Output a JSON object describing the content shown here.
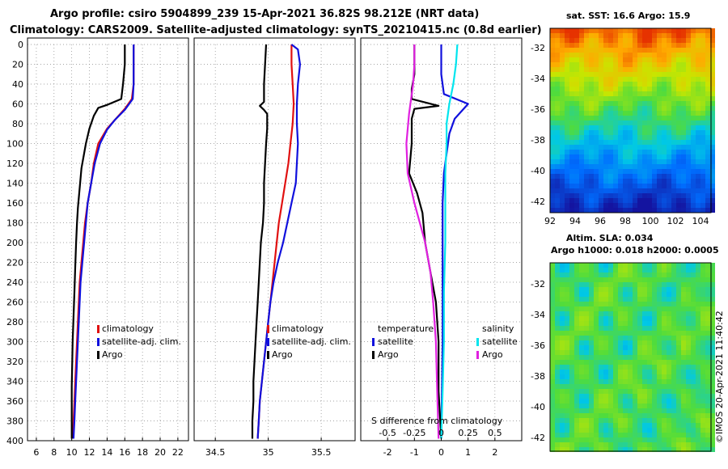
{
  "header": {
    "line1": "Argo profile: csiro 5904899_239 15-Apr-2021 36.82S 98.212E (NRT data)",
    "line2": "Climatology: CARS2009. Satellite-adjusted climatology: synTS_20210415.nc (0.8d earlier)"
  },
  "sst_map": {
    "title": "sat. SST: 16.6 Argo: 15.9",
    "yticks": [
      "-32",
      "-34",
      "-36",
      "-38",
      "-40",
      "-42"
    ],
    "xticks": [
      "92",
      "94",
      "96",
      "98",
      "100",
      "102",
      "104"
    ]
  },
  "sla_map": {
    "title1": "Altim. SLA: 0.034",
    "title2": "Argo h1000: 0.018 h2000: 0.0005",
    "yticks": [
      "-32",
      "-34",
      "-36",
      "-38",
      "-40",
      "-42"
    ]
  },
  "credit": "©IMOS 20-Apr-2021 11:40:42",
  "colors": {
    "climatology": "#e01010",
    "satellite": "#1010dd",
    "argo": "#000000",
    "salinity_sat": "#00e5ee",
    "salinity_argo": "#e020e0"
  },
  "chart_data": [
    {
      "type": "line",
      "name": "temperature",
      "ylabel": "depth",
      "ylim": [
        400,
        0
      ],
      "yticks": [
        0,
        20,
        40,
        60,
        80,
        100,
        120,
        140,
        160,
        180,
        200,
        220,
        240,
        260,
        280,
        300,
        320,
        340,
        360,
        380,
        400
      ],
      "xlim": [
        5,
        23.2
      ],
      "xticks": [
        6,
        8,
        10,
        12,
        14,
        16,
        18,
        20,
        22
      ],
      "legend": [
        "climatology",
        "satellite-adj. clim.",
        "Argo"
      ],
      "series": [
        {
          "name": "climatology",
          "color": "#e01010",
          "points": [
            [
              17,
              0
            ],
            [
              17,
              20
            ],
            [
              17,
              40
            ],
            [
              16.8,
              55
            ],
            [
              16,
              65
            ],
            [
              15,
              75
            ],
            [
              14,
              85
            ],
            [
              13,
              100
            ],
            [
              12.5,
              120
            ],
            [
              12.2,
              140
            ],
            [
              11.8,
              160
            ],
            [
              11.5,
              180
            ],
            [
              11.3,
              200
            ],
            [
              11.1,
              220
            ],
            [
              10.9,
              240
            ],
            [
              10.8,
              260
            ],
            [
              10.7,
              280
            ],
            [
              10.6,
              300
            ],
            [
              10.5,
              320
            ],
            [
              10.4,
              340
            ],
            [
              10.3,
              360
            ],
            [
              10.2,
              380
            ],
            [
              10.1,
              398
            ]
          ]
        },
        {
          "name": "satellite-adj. clim.",
          "color": "#1010dd",
          "points": [
            [
              17,
              0
            ],
            [
              17,
              20
            ],
            [
              17,
              40
            ],
            [
              16.9,
              55
            ],
            [
              16,
              66
            ],
            [
              14.9,
              76
            ],
            [
              14,
              86
            ],
            [
              13.2,
              100
            ],
            [
              12.6,
              120
            ],
            [
              12.2,
              140
            ],
            [
              11.8,
              160
            ],
            [
              11.6,
              180
            ],
            [
              11.4,
              200
            ],
            [
              11.2,
              220
            ],
            [
              11,
              240
            ],
            [
              10.9,
              260
            ],
            [
              10.8,
              280
            ],
            [
              10.7,
              300
            ],
            [
              10.6,
              320
            ],
            [
              10.5,
              340
            ],
            [
              10.4,
              360
            ],
            [
              10.3,
              380
            ],
            [
              10.2,
              398
            ]
          ]
        },
        {
          "name": "Argo",
          "color": "#000000",
          "points": [
            [
              16,
              0
            ],
            [
              16,
              20
            ],
            [
              15.8,
              40
            ],
            [
              15.6,
              55
            ],
            [
              14,
              61
            ],
            [
              13,
              64
            ],
            [
              12.5,
              72
            ],
            [
              12,
              85
            ],
            [
              11.6,
              100
            ],
            [
              11.1,
              125
            ],
            [
              10.9,
              145
            ],
            [
              10.7,
              165
            ],
            [
              10.6,
              180
            ],
            [
              10.5,
              200
            ],
            [
              10.4,
              225
            ],
            [
              10.3,
              250
            ],
            [
              10.2,
              275
            ],
            [
              10.1,
              300
            ],
            [
              10.05,
              325
            ],
            [
              10,
              345
            ],
            [
              10,
              370
            ],
            [
              10,
              398
            ]
          ]
        }
      ]
    },
    {
      "type": "line",
      "name": "salinity",
      "ylim": [
        400,
        0
      ],
      "xlim": [
        34.3,
        35.82
      ],
      "xticks": [
        34.5,
        35,
        35.5
      ],
      "legend": [
        "climatology",
        "satellite-adj. clim.",
        "Argo"
      ],
      "series": [
        {
          "name": "climatology",
          "color": "#e01010",
          "points": [
            [
              35.22,
              0
            ],
            [
              35.22,
              20
            ],
            [
              35.23,
              40
            ],
            [
              35.24,
              60
            ],
            [
              35.23,
              80
            ],
            [
              35.21,
              100
            ],
            [
              35.19,
              120
            ],
            [
              35.16,
              140
            ],
            [
              35.13,
              160
            ],
            [
              35.1,
              180
            ],
            [
              35.08,
              200
            ],
            [
              35.06,
              220
            ],
            [
              35.04,
              240
            ],
            [
              35.02,
              260
            ],
            [
              35.0,
              280
            ],
            [
              34.98,
              300
            ],
            [
              34.96,
              320
            ],
            [
              34.94,
              340
            ],
            [
              34.92,
              360
            ],
            [
              34.91,
              380
            ],
            [
              34.9,
              398
            ]
          ]
        },
        {
          "name": "satellite-adj. clim.",
          "color": "#1010dd",
          "points": [
            [
              35.22,
              0
            ],
            [
              35.28,
              5
            ],
            [
              35.3,
              20
            ],
            [
              35.28,
              40
            ],
            [
              35.27,
              60
            ],
            [
              35.27,
              80
            ],
            [
              35.28,
              100
            ],
            [
              35.27,
              120
            ],
            [
              35.26,
              140
            ],
            [
              35.22,
              160
            ],
            [
              35.18,
              180
            ],
            [
              35.14,
              200
            ],
            [
              35.09,
              220
            ],
            [
              35.05,
              240
            ],
            [
              35.02,
              260
            ],
            [
              35.0,
              280
            ],
            [
              34.98,
              300
            ],
            [
              34.96,
              320
            ],
            [
              34.94,
              340
            ],
            [
              34.92,
              360
            ],
            [
              34.91,
              380
            ],
            [
              34.9,
              398
            ]
          ]
        },
        {
          "name": "Argo",
          "color": "#000000",
          "points": [
            [
              34.98,
              0
            ],
            [
              34.97,
              20
            ],
            [
              34.96,
              40
            ],
            [
              34.96,
              58
            ],
            [
              34.92,
              62
            ],
            [
              34.96,
              66
            ],
            [
              34.99,
              70
            ],
            [
              34.99,
              85
            ],
            [
              34.98,
              100
            ],
            [
              34.97,
              120
            ],
            [
              34.96,
              140
            ],
            [
              34.96,
              160
            ],
            [
              34.95,
              180
            ],
            [
              34.93,
              200
            ],
            [
              34.92,
              220
            ],
            [
              34.91,
              240
            ],
            [
              34.9,
              260
            ],
            [
              34.89,
              280
            ],
            [
              34.88,
              300
            ],
            [
              34.87,
              320
            ],
            [
              34.86,
              340
            ],
            [
              34.86,
              360
            ],
            [
              34.85,
              380
            ],
            [
              34.85,
              398
            ]
          ]
        }
      ]
    },
    {
      "type": "line",
      "name": "difference",
      "ylim": [
        400,
        0
      ],
      "xlim": [
        -3,
        3
      ],
      "xticks_top": [
        -2,
        -1,
        0,
        1,
        2
      ],
      "xticks_bottom": [
        "-0.5",
        "-0.25",
        "0",
        "0.25",
        "0.5"
      ],
      "xlabel": "S difference from climatology",
      "legend_left_title": "temperature",
      "legend_right_title": "salinity",
      "legend": [
        "satellite",
        "Argo",
        "satellite",
        "Argo"
      ],
      "series": [
        {
          "name": "temperature satellite",
          "color": "#1010dd",
          "points": [
            [
              0,
              0
            ],
            [
              0,
              30
            ],
            [
              0.1,
              50
            ],
            [
              1,
              60
            ],
            [
              0.5,
              75
            ],
            [
              0.3,
              90
            ],
            [
              0.2,
              110
            ],
            [
              0.1,
              130
            ],
            [
              0.05,
              160
            ],
            [
              0.05,
              200
            ],
            [
              0.05,
              300
            ],
            [
              0,
              398
            ]
          ]
        },
        {
          "name": "temperature Argo",
          "color": "#000000",
          "points": [
            [
              -1,
              0
            ],
            [
              -1,
              30
            ],
            [
              -1.1,
              45
            ],
            [
              -1.1,
              55
            ],
            [
              -0.1,
              62
            ],
            [
              -1,
              65
            ],
            [
              -1.1,
              75
            ],
            [
              -1.1,
              100
            ],
            [
              -1.2,
              130
            ],
            [
              -0.9,
              150
            ],
            [
              -0.7,
              170
            ],
            [
              -0.6,
              200
            ],
            [
              -0.4,
              230
            ],
            [
              -0.2,
              260
            ],
            [
              -0.1,
              300
            ],
            [
              -0.1,
              350
            ],
            [
              0,
              398
            ]
          ]
        },
        {
          "name": "salinity satellite",
          "color": "#00e5ee",
          "points": [
            [
              0.6,
              0
            ],
            [
              0.55,
              20
            ],
            [
              0.45,
              40
            ],
            [
              0.3,
              60
            ],
            [
              0.2,
              80
            ],
            [
              0.2,
              100
            ],
            [
              0.15,
              130
            ],
            [
              0.15,
              160
            ],
            [
              0.15,
              200
            ],
            [
              0.1,
              250
            ],
            [
              0.1,
              300
            ],
            [
              0.05,
              350
            ],
            [
              0,
              398
            ]
          ]
        },
        {
          "name": "salinity Argo",
          "color": "#e020e0",
          "points": [
            [
              -1,
              0
            ],
            [
              -1,
              20
            ],
            [
              -1.05,
              40
            ],
            [
              -1.2,
              70
            ],
            [
              -1.3,
              100
            ],
            [
              -1.25,
              130
            ],
            [
              -1,
              160
            ],
            [
              -0.8,
              180
            ],
            [
              -0.6,
              200
            ],
            [
              -0.4,
              230
            ],
            [
              -0.3,
              260
            ],
            [
              -0.2,
              300
            ],
            [
              -0.15,
              350
            ],
            [
              -0.1,
              398
            ]
          ]
        }
      ]
    }
  ]
}
